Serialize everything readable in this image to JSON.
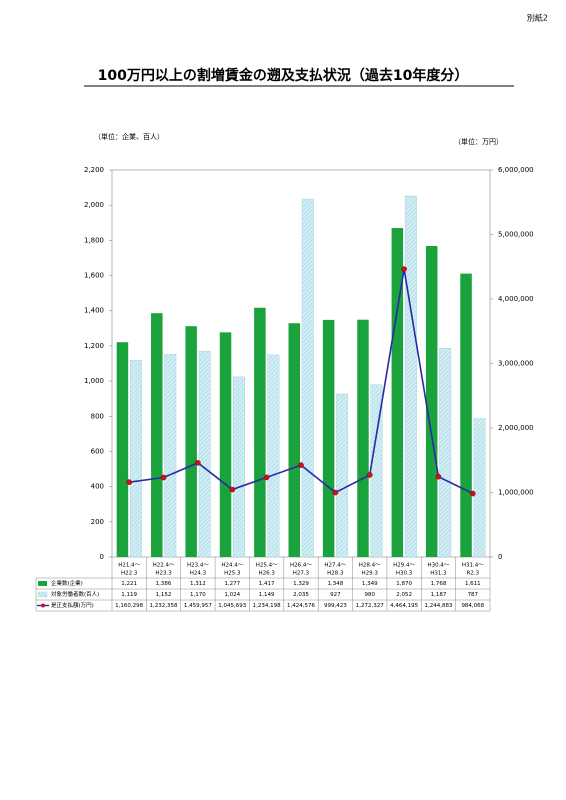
{
  "page_label": "別紙2",
  "chart_data": {
    "type": "bar-line",
    "title": "100万円以上の割増賃金の遡及支払状況（過去10年度分）",
    "y_unit": "（単位：企業、百人）",
    "y2_unit": "（単位：万円）",
    "categories": [
      [
        "H21.4～",
        "H22.3"
      ],
      [
        "H22.4～",
        "H23.3"
      ],
      [
        "H23.4～",
        "H24.3"
      ],
      [
        "H24.4～",
        "H25.3"
      ],
      [
        "H25.4～",
        "H26.3"
      ],
      [
        "H26.4～",
        "H27.3"
      ],
      [
        "H27.4～",
        "H28.3"
      ],
      [
        "H28.4～",
        "H29.3"
      ],
      [
        "H29.4～",
        "H30.3"
      ],
      [
        "H30.4～",
        "H31.3"
      ],
      [
        "H31.4～",
        "R2.3"
      ]
    ],
    "series": [
      {
        "name": "企業数(企業)",
        "type": "bar",
        "color": "#1aa33c",
        "values": [
          1221,
          1386,
          1312,
          1277,
          1417,
          1329,
          1348,
          1349,
          1870,
          1768,
          1611
        ],
        "value_labels": [
          "1,221",
          "1,386",
          "1,312",
          "1,277",
          "1,417",
          "1,329",
          "1,348",
          "1,349",
          "1,870",
          "1,768",
          "1,611"
        ]
      },
      {
        "name": "対象労働者数(百人)",
        "type": "bar",
        "color": "#d2eef5",
        "values": [
          1119,
          1152,
          1170,
          1024,
          1149,
          2035,
          927,
          980,
          2052,
          1187,
          787
        ],
        "value_labels": [
          "1,119",
          "1,152",
          "1,170",
          "1,024",
          "1,149",
          "2,035",
          "927",
          "980",
          "2,052",
          "1,187",
          "787"
        ]
      },
      {
        "name": "是正支払額(万円)",
        "type": "line",
        "axis": "y2",
        "color": "#2a2aa8",
        "marker_color": "#d0101a",
        "values": [
          1160298,
          1232358,
          1459957,
          1045693,
          1234198,
          1424576,
          999423,
          1272327,
          4464195,
          1244883,
          984068
        ],
        "value_labels": [
          "1,160,298",
          "1,232,358",
          "1,459,957",
          "1,045,693",
          "1,234,198",
          "1,424,576",
          "999,423",
          "1,272,327",
          "4,464,195",
          "1,244,883",
          "984,068"
        ]
      }
    ],
    "ylim": [
      0,
      2200
    ],
    "yticks": [
      0,
      200,
      400,
      600,
      800,
      {
        "value": 1000,
        "label": "1,000"
      },
      {
        "value": 1200,
        "label": "1,200"
      },
      {
        "value": 1400,
        "label": "1,400"
      },
      {
        "value": 1600,
        "label": "1,600"
      },
      {
        "value": 1800,
        "label": "1,800"
      },
      {
        "value": 2000,
        "label": "2,000"
      },
      {
        "value": 2200,
        "label": "2,200"
      }
    ],
    "y2lim": [
      0,
      6000000
    ],
    "y2ticks": [
      0,
      {
        "value": 1000000,
        "label": "1,000,000"
      },
      {
        "value": 2000000,
        "label": "2,000,000"
      },
      {
        "value": 3000000,
        "label": "3,000,000"
      },
      {
        "value": 4000000,
        "label": "4,000,000"
      },
      {
        "value": 5000000,
        "label": "5,000,000"
      },
      {
        "value": 6000000,
        "label": "6,000,000"
      }
    ]
  }
}
